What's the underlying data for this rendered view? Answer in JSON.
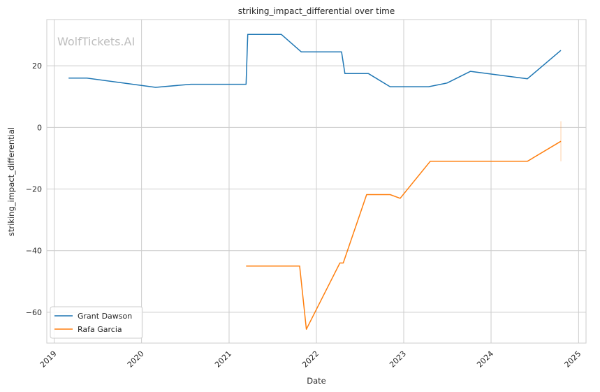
{
  "watermark": "WolfTickets.AI",
  "chart_data": {
    "type": "line",
    "title": "striking_impact_differential over time",
    "xlabel": "Date",
    "ylabel": "striking_impact_differential",
    "x_ticks": [
      "2019",
      "2020",
      "2021",
      "2022",
      "2023",
      "2024",
      "2025"
    ],
    "y_ticks": [
      -60,
      -40,
      -20,
      0,
      20
    ],
    "xlim": [
      "2018-12-01",
      "2025-02-01"
    ],
    "ylim": [
      -70,
      35
    ],
    "grid": true,
    "legend_position": "lower-left",
    "series": [
      {
        "name": "Grant Dawson",
        "color": "#1f77b4",
        "points": [
          [
            "2019-03-02",
            16.0
          ],
          [
            "2019-05-18",
            16.0
          ],
          [
            "2020-02-29",
            13.0
          ],
          [
            "2020-07-25",
            14.0
          ],
          [
            "2021-03-13",
            14.0
          ],
          [
            "2021-03-20",
            30.2
          ],
          [
            "2021-08-07",
            30.2
          ],
          [
            "2021-10-30",
            24.5
          ],
          [
            "2022-04-16",
            24.5
          ],
          [
            "2022-04-30",
            17.5
          ],
          [
            "2022-08-06",
            17.5
          ],
          [
            "2022-11-05",
            13.2
          ],
          [
            "2023-04-15",
            13.2
          ],
          [
            "2023-07-01",
            14.4
          ],
          [
            "2023-10-07",
            18.2
          ],
          [
            "2024-06-01",
            15.8
          ],
          [
            "2024-10-19",
            25.0
          ]
        ]
      },
      {
        "name": "Rafa Garcia",
        "color": "#ff7f0e",
        "points": [
          [
            "2021-03-13",
            -45.0
          ],
          [
            "2021-10-23",
            -45.0
          ],
          [
            "2021-11-20",
            -65.5
          ],
          [
            "2022-04-09",
            -44.0
          ],
          [
            "2022-04-23",
            -44.0
          ],
          [
            "2022-07-30",
            -21.8
          ],
          [
            "2022-11-05",
            -21.8
          ],
          [
            "2022-12-17",
            -23.0
          ],
          [
            "2023-04-22",
            -11.0
          ],
          [
            "2024-06-01",
            -11.0
          ],
          [
            "2024-10-19",
            -4.5
          ]
        ],
        "error_bar": {
          "x": "2024-10-19",
          "low": -11.0,
          "high": 2.0
        }
      }
    ]
  }
}
